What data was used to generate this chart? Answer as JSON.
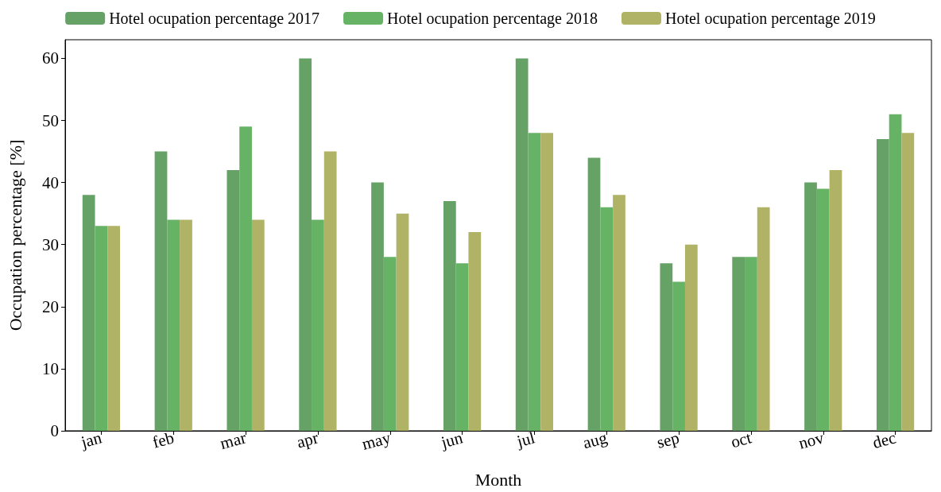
{
  "chart_data": {
    "type": "bar",
    "xlabel": "Month",
    "ylabel": "Occupation percentage [%]",
    "categories": [
      "jan",
      "feb",
      "mar",
      "apr",
      "may",
      "jun",
      "jul",
      "aug",
      "sep",
      "oct",
      "nov",
      "dec"
    ],
    "series": [
      {
        "name": "Hotel ocupation percentage 2017",
        "color": "#66a266",
        "values": [
          38,
          45,
          42,
          60,
          40,
          37,
          60,
          44,
          27,
          28,
          40,
          47
        ]
      },
      {
        "name": "Hotel ocupation percentage 2018",
        "color": "#66b366",
        "values": [
          33,
          34,
          49,
          34,
          28,
          27,
          48,
          36,
          24,
          28,
          39,
          51
        ]
      },
      {
        "name": "Hotel ocupation percentage 2019",
        "color": "#b0b266",
        "values": [
          33,
          34,
          34,
          45,
          35,
          32,
          48,
          38,
          30,
          36,
          42,
          48
        ]
      }
    ],
    "ylim": [
      0,
      63
    ],
    "yticks": [
      0,
      10,
      20,
      30,
      40,
      50,
      60
    ],
    "grid": false,
    "legend": "top"
  }
}
